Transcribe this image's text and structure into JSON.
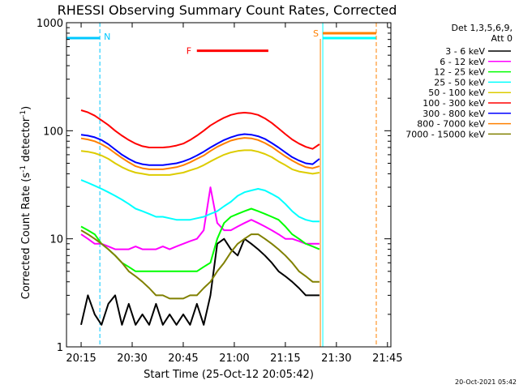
{
  "chart_data": {
    "type": "line",
    "title": "RHESSI Observing Summary Count Rates, Corrected",
    "xlabel": "Start Time (25-Oct-12 20:05:42)",
    "ylabel_main": "Corrected Count Rate (s",
    "ylabel_sup1": "-1",
    "ylabel_mid": " detector",
    "ylabel_sup2": "-1",
    "ylabel_end": ")",
    "yscale": "log",
    "xlim_min": [
      5.7,
      101
    ],
    "ylim": [
      1,
      1000
    ],
    "x_ticks": [
      {
        "v": 10,
        "label": "20:15"
      },
      {
        "v": 25,
        "label": "20:30"
      },
      {
        "v": 40,
        "label": "20:45"
      },
      {
        "v": 55,
        "label": "21:00"
      },
      {
        "v": 70,
        "label": "21:15"
      },
      {
        "v": 85,
        "label": "21:30"
      },
      {
        "v": 100,
        "label": "21:45"
      }
    ],
    "y_ticks": [
      {
        "v": 1,
        "label": "1"
      },
      {
        "v": 10,
        "label": "10"
      },
      {
        "v": 100,
        "label": "100"
      },
      {
        "v": 1000,
        "label": "1000"
      }
    ],
    "legend_title_1": "Det 1,3,5,6,9,",
    "legend_title_2": "Att 0",
    "legend_placement": "right",
    "series": [
      {
        "name": "3 - 6 keV",
        "color": "#000000",
        "x": [
          10,
          12,
          14,
          16,
          18,
          20,
          22,
          24,
          26,
          28,
          30,
          32,
          34,
          36,
          38,
          40,
          42,
          44,
          46,
          48,
          50,
          52,
          54,
          56,
          58,
          60,
          62,
          64,
          66,
          68,
          70,
          72,
          74,
          76,
          78,
          80
        ],
        "y": [
          1.6,
          3,
          2,
          1.6,
          2.5,
          3,
          1.6,
          2.5,
          1.6,
          2,
          1.6,
          2.5,
          1.6,
          2,
          1.6,
          2,
          1.6,
          2.5,
          1.6,
          3,
          9,
          10,
          8,
          7,
          10,
          9,
          8,
          7,
          6,
          5,
          4.5,
          4,
          3.5,
          3,
          3,
          3
        ]
      },
      {
        "name": "6 - 12 keV",
        "color": "#ff00ff",
        "x": [
          10,
          12,
          14,
          16,
          18,
          20,
          22,
          24,
          26,
          28,
          30,
          32,
          34,
          36,
          38,
          40,
          42,
          44,
          46,
          48,
          50,
          52,
          54,
          56,
          58,
          60,
          62,
          64,
          66,
          68,
          70,
          72,
          74,
          76,
          78,
          80
        ],
        "y": [
          11,
          10,
          9,
          9,
          8.5,
          8,
          8,
          8,
          8.5,
          8,
          8,
          8,
          8.5,
          8,
          8.5,
          9,
          9.5,
          10,
          12,
          30,
          14,
          12,
          12,
          13,
          14,
          15,
          14,
          13,
          12,
          11,
          10,
          10,
          9.5,
          9,
          9,
          9
        ]
      },
      {
        "name": "12 - 25 keV",
        "color": "#00ff00",
        "x": [
          10,
          12,
          14,
          16,
          18,
          20,
          22,
          24,
          26,
          28,
          30,
          32,
          34,
          36,
          38,
          40,
          42,
          44,
          46,
          48,
          50,
          52,
          54,
          56,
          58,
          60,
          62,
          64,
          66,
          68,
          70,
          72,
          74,
          76,
          78,
          80
        ],
        "y": [
          13,
          12,
          11,
          9,
          8,
          7,
          6,
          5.5,
          5,
          5,
          5,
          5,
          5,
          5,
          5,
          5,
          5,
          5,
          5.5,
          6,
          10,
          14,
          16,
          17,
          18,
          19,
          18,
          17,
          16,
          15,
          13,
          11,
          10,
          9,
          8.5,
          8
        ]
      },
      {
        "name": "25 - 50 keV",
        "color": "#00ffff",
        "x": [
          10,
          12,
          14,
          16,
          18,
          20,
          22,
          24,
          26,
          28,
          30,
          32,
          34,
          36,
          38,
          40,
          42,
          44,
          46,
          48,
          50,
          52,
          54,
          56,
          58,
          60,
          62,
          64,
          66,
          68,
          70,
          72,
          74,
          76,
          78,
          80
        ],
        "y": [
          35,
          33,
          31,
          29,
          27,
          25,
          23,
          21,
          19,
          18,
          17,
          16,
          16,
          15.5,
          15,
          15,
          15,
          15.5,
          16,
          17,
          18,
          20,
          22,
          25,
          27,
          28,
          29,
          28,
          26,
          24,
          21,
          18,
          16,
          15,
          14.5,
          14.5
        ]
      },
      {
        "name": "50 - 100 keV",
        "color": "#ddcc00",
        "x": [
          10,
          12,
          14,
          16,
          18,
          20,
          22,
          24,
          26,
          28,
          30,
          32,
          34,
          36,
          38,
          40,
          42,
          44,
          46,
          48,
          50,
          52,
          54,
          56,
          58,
          60,
          62,
          64,
          66,
          68,
          70,
          72,
          74,
          76,
          78,
          80
        ],
        "y": [
          65,
          64,
          62,
          59,
          55,
          50,
          46,
          43,
          41,
          40,
          39,
          39,
          39,
          39,
          40,
          41,
          43,
          45,
          48,
          52,
          56,
          60,
          63,
          65,
          66,
          66,
          64,
          61,
          57,
          52,
          48,
          44,
          42,
          41,
          40,
          41
        ]
      },
      {
        "name": "100 - 300 keV",
        "color": "#ff0000",
        "x": [
          10,
          12,
          14,
          16,
          18,
          20,
          22,
          24,
          26,
          28,
          30,
          32,
          34,
          36,
          38,
          40,
          42,
          44,
          46,
          48,
          50,
          52,
          54,
          56,
          58,
          60,
          62,
          64,
          66,
          68,
          70,
          72,
          74,
          76,
          78,
          80
        ],
        "y": [
          155,
          148,
          138,
          125,
          113,
          100,
          90,
          82,
          76,
          72,
          70,
          70,
          70,
          71,
          73,
          76,
          82,
          90,
          100,
          112,
          122,
          132,
          140,
          145,
          147,
          145,
          140,
          130,
          118,
          105,
          93,
          83,
          76,
          71,
          68,
          75
        ]
      },
      {
        "name": "300 - 800 keV",
        "color": "#0000ff",
        "x": [
          10,
          12,
          14,
          16,
          18,
          20,
          22,
          24,
          26,
          28,
          30,
          32,
          34,
          36,
          38,
          40,
          42,
          44,
          46,
          48,
          50,
          52,
          54,
          56,
          58,
          60,
          62,
          64,
          66,
          68,
          70,
          72,
          74,
          76,
          78,
          80
        ],
        "y": [
          92,
          90,
          87,
          82,
          75,
          67,
          60,
          55,
          51,
          49,
          48,
          48,
          48,
          49,
          50,
          52,
          55,
          59,
          64,
          70,
          76,
          82,
          87,
          91,
          93,
          92,
          89,
          84,
          77,
          70,
          63,
          57,
          53,
          50,
          49,
          55
        ]
      },
      {
        "name": "800 - 7000 keV",
        "color": "#ff8000",
        "x": [
          10,
          12,
          14,
          16,
          18,
          20,
          22,
          24,
          26,
          28,
          30,
          32,
          34,
          36,
          38,
          40,
          42,
          44,
          46,
          48,
          50,
          52,
          54,
          56,
          58,
          60,
          62,
          64,
          66,
          68,
          70,
          72,
          74,
          76,
          78,
          80
        ],
        "y": [
          85,
          83,
          80,
          75,
          69,
          62,
          56,
          51,
          47,
          45,
          44,
          44,
          44,
          45,
          46,
          48,
          51,
          55,
          59,
          65,
          71,
          76,
          81,
          84,
          86,
          85,
          82,
          77,
          71,
          64,
          58,
          53,
          49,
          46,
          45,
          47
        ]
      },
      {
        "name": "7000 - 15000 keV",
        "color": "#808000",
        "x": [
          10,
          12,
          14,
          16,
          18,
          20,
          22,
          24,
          26,
          28,
          30,
          32,
          34,
          36,
          38,
          40,
          42,
          44,
          46,
          48,
          50,
          52,
          54,
          56,
          58,
          60,
          62,
          64,
          66,
          68,
          70,
          72,
          74,
          76,
          78,
          80
        ],
        "y": [
          12,
          11,
          10,
          9,
          8,
          7,
          6,
          5,
          4.5,
          4,
          3.5,
          3,
          3,
          2.8,
          2.8,
          2.8,
          3,
          3,
          3.5,
          4,
          5,
          6,
          7.5,
          9,
          10,
          11,
          11,
          10,
          9,
          8,
          7,
          6,
          5,
          4.5,
          4,
          4
        ]
      }
    ],
    "annotations": [
      {
        "label": "N",
        "color": "#00c8ff",
        "x": 15.5
      },
      {
        "label": "F",
        "color": "#ff0000",
        "x_start": 44,
        "x_end": 65,
        "y": 550
      },
      {
        "label": "S",
        "color": "#ff8000",
        "x": 81
      }
    ],
    "timestamp": "20-Oct-2021 05:42"
  }
}
